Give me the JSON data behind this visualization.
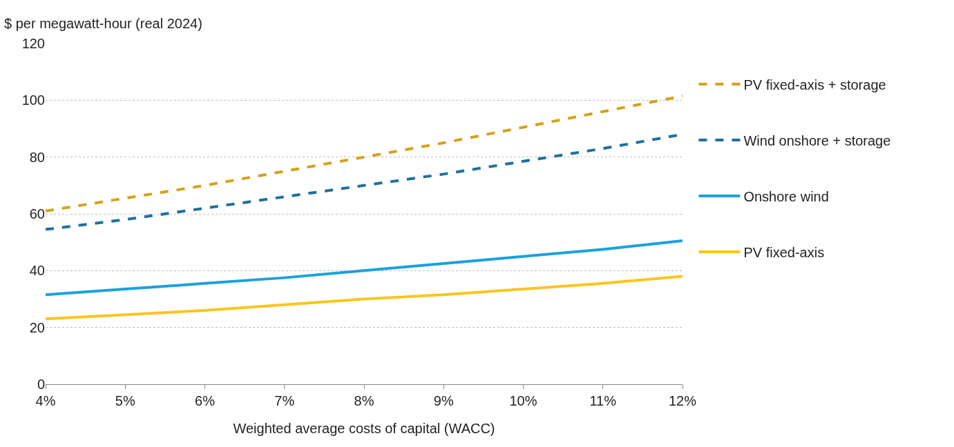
{
  "chart_data": {
    "type": "line",
    "xlabel": "Weighted average costs of capital (WACC)",
    "ylabel": "$ per megawatt-hour (real 2024)",
    "x": [
      4,
      5,
      6,
      7,
      8,
      9,
      10,
      11,
      12
    ],
    "series": [
      {
        "name": "PV fixed-axis + storage",
        "color": "#d4a21a",
        "line_style": "dashed",
        "values": [
          61,
          65.5,
          70,
          75,
          80,
          85,
          90.5,
          96,
          101.5
        ]
      },
      {
        "name": "Wind onshore + storage",
        "color": "#1f6f9e",
        "line_style": "dashed",
        "values": [
          54.5,
          58,
          62,
          66,
          70,
          74,
          78.5,
          83,
          88
        ]
      },
      {
        "name": "Onshore wind",
        "color": "#1ba1dd",
        "line_style": "solid",
        "values": [
          31.5,
          33.5,
          35.5,
          37.5,
          40,
          42.5,
          45,
          47.5,
          50.5
        ]
      },
      {
        "name": "PV fixed-axis",
        "color": "#fcc51e",
        "line_style": "solid",
        "values": [
          23,
          24.5,
          26,
          28,
          30,
          31.5,
          33.5,
          35.5,
          38
        ]
      }
    ],
    "xlim": [
      4,
      12
    ],
    "xticks": [
      {
        "value": 4,
        "label": "4%"
      },
      {
        "value": 5,
        "label": "5%"
      },
      {
        "value": 6,
        "label": "6%"
      },
      {
        "value": 7,
        "label": "7%"
      },
      {
        "value": 8,
        "label": "8%"
      },
      {
        "value": 9,
        "label": "9%"
      },
      {
        "value": 10,
        "label": "10%"
      },
      {
        "value": 11,
        "label": "11%"
      },
      {
        "value": 12,
        "label": "12%"
      }
    ],
    "ylim": [
      0,
      120
    ],
    "yticks": [
      0,
      20,
      40,
      60,
      80,
      100,
      120
    ],
    "grid": "y",
    "legend": "right",
    "marker": "none"
  }
}
